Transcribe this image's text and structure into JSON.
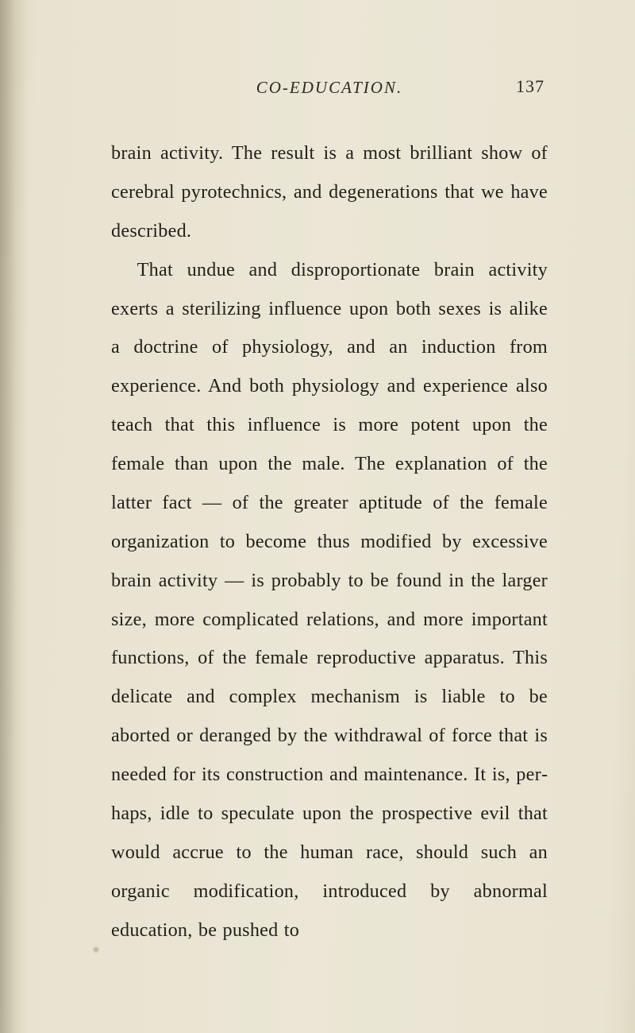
{
  "page": {
    "number": "137",
    "running_title": "CO-EDUCATION.",
    "background_color": "#e8e3d0",
    "text_color": "#211f1b",
    "body_font_size_pt": 18,
    "line_height": 2.02,
    "header_font_size_pt": 16
  },
  "paragraphs": [
    "brain activity. The result is a most brilliant show of cerebral pyrotechnics, and degenera­tions that we have described.",
    "That undue and disproportionate brain activity exerts a sterilizing influence upon both sexes is alike a doctrine of physiology, and an induction from experience. And both physiology and experience also teach that this influence is more potent upon the female than upon the male. The explanation of the latter fact — of the greater aptitude of the female organization to become thus modified by excessive brain activity — is probably to be found in the larger size, more complicated relations, and more important functions, of the female reproductive appara­tus. This delicate and complex mechanism is liable to be aborted or deranged by the withdrawal of force that is needed for its construction and maintenance. It is, per­haps, idle to speculate upon the prospective evil that would accrue to the human race, should such an organic modification, intro­duced by abnormal education, be pushed to"
  ]
}
